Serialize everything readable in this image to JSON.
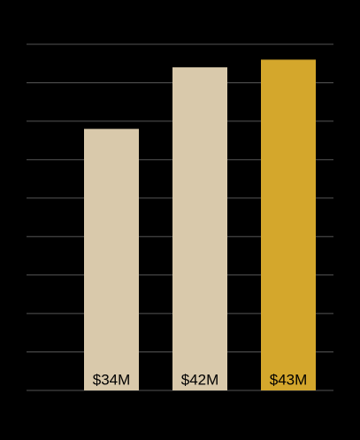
{
  "chart_data": {
    "type": "bar",
    "categories": [
      null,
      null,
      null
    ],
    "values": [
      34,
      42,
      43
    ],
    "value_labels": [
      "$34M",
      "$42M",
      "$43M"
    ],
    "colors": [
      "#d9c9ab",
      "#d9c9ab",
      "#d4a72c"
    ],
    "ylim": [
      0,
      45
    ],
    "yticks": [
      0,
      5,
      10,
      15,
      20,
      25,
      30,
      35,
      40,
      45
    ],
    "grid": true
  }
}
